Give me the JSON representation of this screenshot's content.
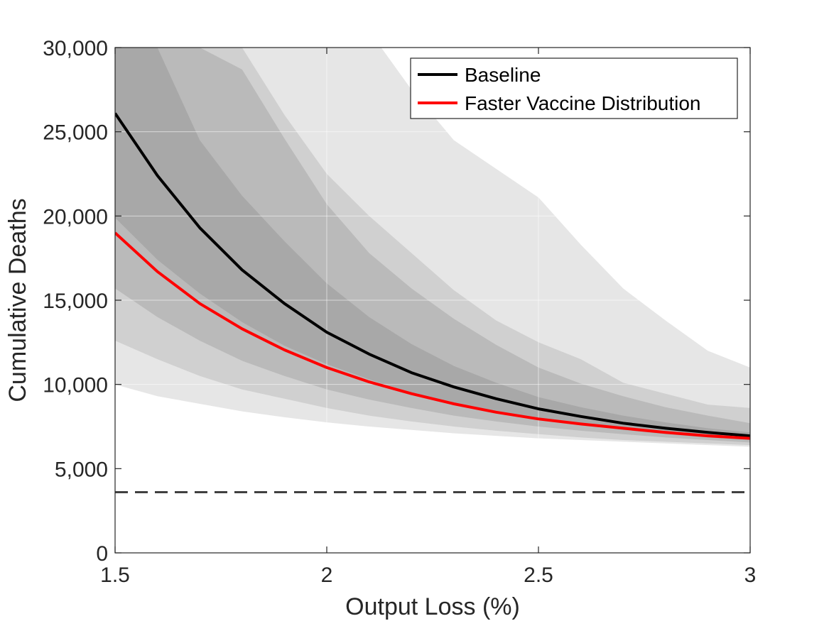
{
  "chart_data": {
    "type": "area",
    "title": "",
    "xlabel": "Output Loss (%)",
    "ylabel": "Cumulative Deaths",
    "xlim": [
      1.5,
      3
    ],
    "ylim": [
      0,
      30000
    ],
    "xticks": [
      1.5,
      2,
      2.5,
      3
    ],
    "xtick_labels": [
      "1.5",
      "2",
      "2.5",
      "3"
    ],
    "yticks": [
      0,
      5000,
      10000,
      15000,
      20000,
      25000,
      30000
    ],
    "ytick_labels": [
      "0",
      "5,000",
      "10,000",
      "15,000",
      "20,000",
      "25,000",
      "30,000"
    ],
    "grid": true,
    "legend_position": "top-right",
    "x": [
      1.5,
      1.6,
      1.7,
      1.8,
      1.9,
      2.0,
      2.1,
      2.2,
      2.3,
      2.4,
      2.5,
      2.6,
      2.7,
      2.8,
      2.9,
      3.0
    ],
    "series": [
      {
        "name": "Baseline",
        "color": "#000000",
        "values": [
          26100,
          22400,
          19300,
          16800,
          14800,
          13100,
          11800,
          10700,
          9850,
          9150,
          8550,
          8100,
          7700,
          7400,
          7150,
          6950
        ]
      },
      {
        "name": "Faster Vaccine Distribution",
        "color": "#ff0000",
        "values": [
          19000,
          16700,
          14800,
          13300,
          12050,
          11000,
          10150,
          9450,
          8850,
          8350,
          7950,
          7650,
          7400,
          7150,
          6950,
          6800
        ]
      }
    ],
    "bands": [
      {
        "color": "#e6e6e6",
        "lower": [
          10000,
          9300,
          8850,
          8400,
          8050,
          7750,
          7500,
          7300,
          7100,
          6950,
          6800,
          6700,
          6600,
          6500,
          6400,
          6300
        ],
        "upper": [
          60000,
          56000,
          50000,
          45000,
          40000,
          35000,
          31000,
          27500,
          24500,
          22800,
          21100,
          18300,
          15700,
          13800,
          12000,
          11000
        ]
      },
      {
        "color": "#d0d0d0",
        "lower": [
          12600,
          11500,
          10500,
          9700,
          9150,
          8600,
          8150,
          7800,
          7500,
          7250,
          7050,
          6850,
          6700,
          6600,
          6500,
          6400
        ],
        "upper": [
          45000,
          40000,
          35000,
          30000,
          26000,
          22500,
          20000,
          17800,
          15600,
          13800,
          12500,
          11500,
          10100,
          9450,
          8800,
          8600
        ]
      },
      {
        "color": "#bababa",
        "lower": [
          15700,
          14000,
          12600,
          11400,
          10500,
          9700,
          9100,
          8600,
          8150,
          7800,
          7500,
          7250,
          7050,
          6850,
          6700,
          6550
        ],
        "upper": [
          37000,
          33000,
          30000,
          28700,
          24600,
          20700,
          17800,
          15700,
          13900,
          12350,
          11000,
          10050,
          9300,
          8650,
          8150,
          7700
        ]
      },
      {
        "color": "#a8a8a8",
        "lower": [
          19900,
          17400,
          15400,
          13700,
          12300,
          11200,
          10300,
          9500,
          8900,
          8400,
          7950,
          7600,
          7300,
          7050,
          6850,
          6700
        ],
        "upper": [
          33000,
          30000,
          24500,
          21200,
          18500,
          16000,
          14000,
          12400,
          11100,
          10100,
          9250,
          8650,
          8150,
          7750,
          7400,
          7150
        ]
      }
    ],
    "reference_line": {
      "y": 3600,
      "style": "dashed",
      "color": "#404040"
    }
  }
}
